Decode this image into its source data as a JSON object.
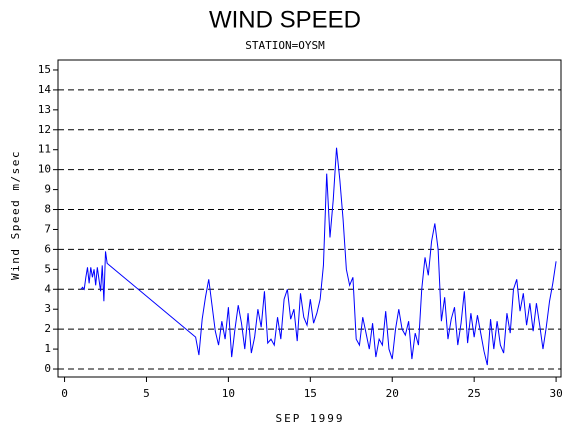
{
  "chart_data": {
    "type": "line",
    "title": "WIND SPEED",
    "subtitle": "STATION=OYSM",
    "x_label": "SEP 1999",
    "y_label": "Wind Speed m/sec",
    "xlim": [
      -0.4,
      30.3
    ],
    "ylim": [
      -0.4,
      15.5
    ],
    "xticks": [
      0,
      5,
      10,
      15,
      20,
      25,
      30
    ],
    "yticks": [
      0,
      1,
      2,
      3,
      4,
      5,
      6,
      7,
      8,
      9,
      10,
      11,
      12,
      13,
      14,
      15
    ],
    "grid_lines": [
      0,
      2,
      4,
      6,
      8,
      10,
      12,
      14
    ],
    "series": [
      {
        "color": "#0000ff",
        "x": [
          1.0,
          1.1,
          1.2,
          1.3,
          1.4,
          1.5,
          1.6,
          1.7,
          1.8,
          1.9,
          2.0,
          2.1,
          2.2,
          2.3,
          2.4,
          2.5,
          2.6,
          8.0,
          8.2,
          8.4,
          8.6,
          8.8,
          9.0,
          9.2,
          9.4,
          9.6,
          9.8,
          10.0,
          10.2,
          10.4,
          10.6,
          10.8,
          11.0,
          11.2,
          11.4,
          11.6,
          11.8,
          12.0,
          12.2,
          12.4,
          12.6,
          12.8,
          13.0,
          13.2,
          13.4,
          13.6,
          13.8,
          14.0,
          14.2,
          14.4,
          14.6,
          14.8,
          15.0,
          15.2,
          15.4,
          15.6,
          15.8,
          16.0,
          16.2,
          16.4,
          16.6,
          16.8,
          17.0,
          17.2,
          17.4,
          17.6,
          17.8,
          18.0,
          18.2,
          18.4,
          18.6,
          18.8,
          19.0,
          19.2,
          19.4,
          19.6,
          19.8,
          20.0,
          20.2,
          20.4,
          20.6,
          20.8,
          21.0,
          21.2,
          21.4,
          21.6,
          21.8,
          22.0,
          22.2,
          22.4,
          22.6,
          22.8,
          23.0,
          23.2,
          23.4,
          23.6,
          23.8,
          24.0,
          24.2,
          24.4,
          24.6,
          24.8,
          25.0,
          25.2,
          25.4,
          25.6,
          25.8,
          26.0,
          26.2,
          26.4,
          26.6,
          26.8,
          27.0,
          27.2,
          27.4,
          27.6,
          27.8,
          28.0,
          28.2,
          28.4,
          28.6,
          28.8,
          29.0,
          29.2,
          29.4,
          29.6,
          29.8,
          30.0
        ],
        "values": [
          4.0,
          4.1,
          4.0,
          4.6,
          5.1,
          4.3,
          5.1,
          4.6,
          5.0,
          4.2,
          5.1,
          4.5,
          3.9,
          5.2,
          3.4,
          5.9,
          5.3,
          1.6,
          0.7,
          2.5,
          3.6,
          4.5,
          3.2,
          1.9,
          1.2,
          2.4,
          1.5,
          3.1,
          0.6,
          2.0,
          3.2,
          2.3,
          1.0,
          2.8,
          0.8,
          1.6,
          3.0,
          2.1,
          3.9,
          1.3,
          1.5,
          1.2,
          2.6,
          1.5,
          3.5,
          4.0,
          2.5,
          3.0,
          1.4,
          3.8,
          2.6,
          2.2,
          3.5,
          2.3,
          2.8,
          3.5,
          5.2,
          9.8,
          6.6,
          8.5,
          11.1,
          9.5,
          7.5,
          5.0,
          4.2,
          4.6,
          1.5,
          1.2,
          2.6,
          1.8,
          1.0,
          2.3,
          0.6,
          1.5,
          1.2,
          2.9,
          1.0,
          0.5,
          2.0,
          3.0,
          2.0,
          1.7,
          2.4,
          0.5,
          1.8,
          1.2,
          4.0,
          5.6,
          4.7,
          6.4,
          7.3,
          6.0,
          2.4,
          3.6,
          1.5,
          2.5,
          3.1,
          1.2,
          2.3,
          3.9,
          1.3,
          2.8,
          1.6,
          2.7,
          1.8,
          0.9,
          0.2,
          2.5,
          1.0,
          2.4,
          1.2,
          0.8,
          2.8,
          1.8,
          4.0,
          4.5,
          2.9,
          3.8,
          2.2,
          3.3,
          1.9,
          3.3,
          2.2,
          1.0,
          2.1,
          3.4,
          4.3,
          5.4
        ]
      }
    ]
  }
}
